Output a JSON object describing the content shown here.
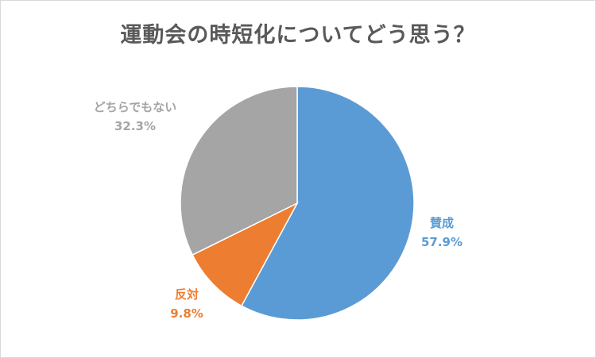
{
  "chart_data": {
    "type": "pie",
    "title": "運動会の時短化についてどう思う？",
    "slices": [
      {
        "label": "賛成",
        "value": 57.9,
        "value_label": "57.9%",
        "color": "#5b9bd5"
      },
      {
        "label": "反対",
        "value": 9.8,
        "value_label": "9.8%",
        "color": "#ed7d31"
      },
      {
        "label": "どちらでもない",
        "value": 32.3,
        "value_label": "32.3%",
        "color": "#a5a5a5"
      }
    ],
    "start_angle": "12 o'clock",
    "direction": "clockwise",
    "legend": "none",
    "data_labels": "outside"
  }
}
